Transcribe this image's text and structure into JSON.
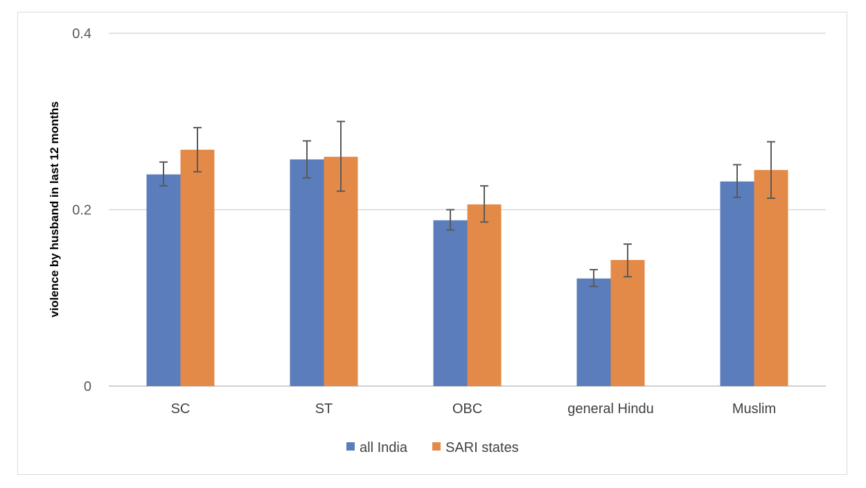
{
  "chart_data": {
    "type": "bar",
    "title": "",
    "xlabel": "",
    "ylabel": "violence by husband in last 12 months",
    "ylim": [
      0,
      0.4
    ],
    "yticks": [
      0,
      0.2,
      0.4
    ],
    "ytick_labels": [
      "0",
      "0.2",
      "0.4"
    ],
    "grid": true,
    "legend_position": "bottom",
    "categories": [
      "SC",
      "ST",
      "OBC",
      "general Hindu",
      "Muslim"
    ],
    "series": [
      {
        "name": "all India",
        "color": "#5b7dbb",
        "values": [
          0.24,
          0.257,
          0.188,
          0.122,
          0.232
        ],
        "error_low": [
          0.227,
          0.236,
          0.177,
          0.113,
          0.214
        ],
        "error_high": [
          0.254,
          0.278,
          0.2,
          0.132,
          0.251
        ]
      },
      {
        "name": "SARI states",
        "color": "#e48a48",
        "values": [
          0.268,
          0.26,
          0.206,
          0.143,
          0.245
        ],
        "error_low": [
          0.243,
          0.221,
          0.186,
          0.124,
          0.213
        ],
        "error_high": [
          0.293,
          0.3,
          0.227,
          0.161,
          0.277
        ]
      }
    ],
    "error_bar_color": "#595959"
  }
}
